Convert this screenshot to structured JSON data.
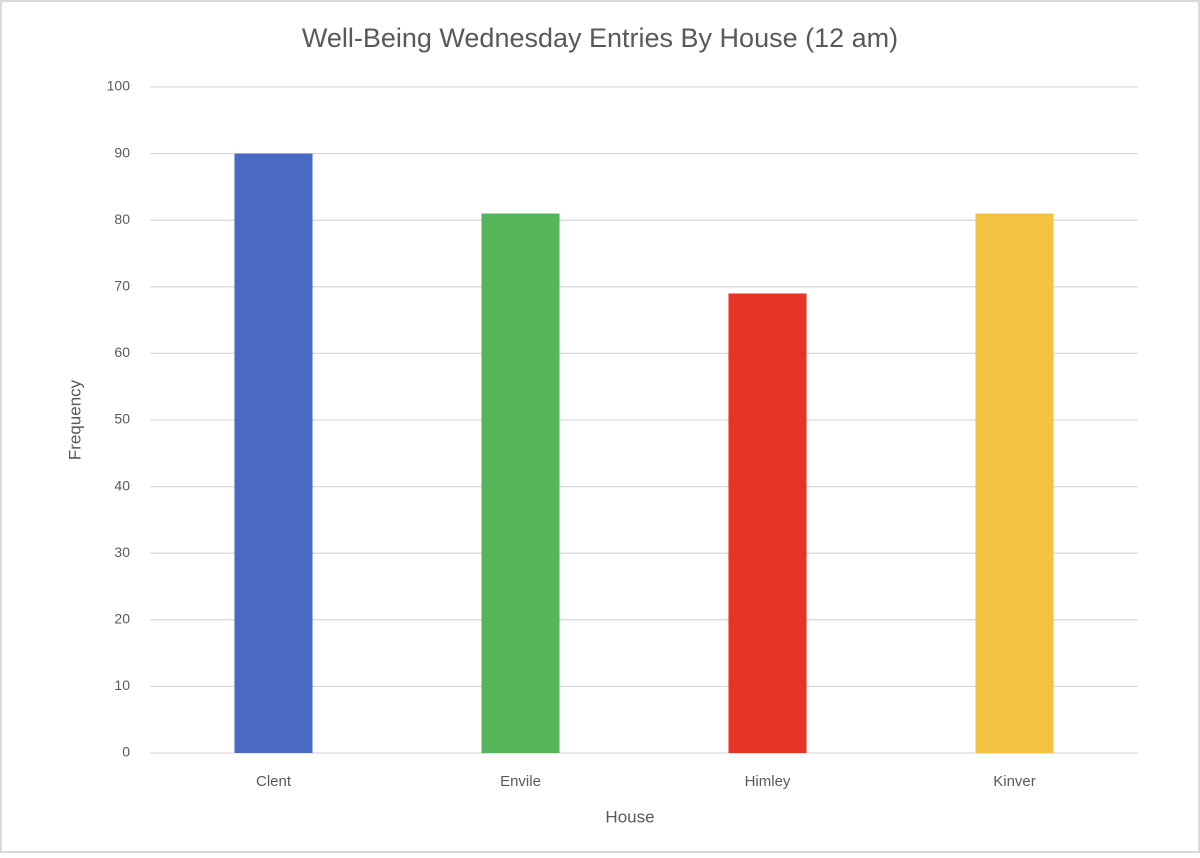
{
  "chart_data": {
    "type": "bar",
    "title": "Well-Being Wednesday Entries By House (12 am)",
    "x_label": "House",
    "y_label": "Frequency",
    "categories": [
      "Clent",
      "Envile",
      "Himley",
      "Kinver"
    ],
    "values": [
      90,
      81,
      69,
      81
    ],
    "colors": [
      "#4a69c2",
      "#56b45a",
      "#e63427",
      "#f4c242"
    ],
    "ylim": [
      0,
      100
    ],
    "yticks": [
      0,
      10,
      20,
      30,
      40,
      50,
      60,
      70,
      80,
      90,
      100
    ],
    "grid": true
  }
}
